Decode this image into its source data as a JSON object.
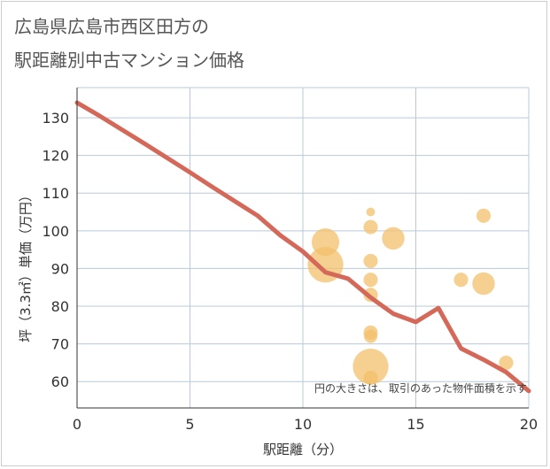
{
  "chart_data": {
    "type": "scatter",
    "title_line1": "広島県広島市西区田方の",
    "title_line2": "駅距離別中古マンション価格",
    "xlabel": "駅距離（分）",
    "ylabel": "坪（3.3㎡）単価（万円）",
    "note": "円の大きさは、取引のあった物件面積を示す",
    "xlim": [
      0,
      20
    ],
    "ylim": [
      53,
      138
    ],
    "xticks": [
      0,
      5,
      10,
      15,
      20
    ],
    "yticks": [
      60,
      70,
      80,
      90,
      100,
      110,
      120,
      130
    ],
    "colors": {
      "bubble": "#f3c06b",
      "line": "#d4695a",
      "grid": "#b9c9d9"
    },
    "bubbles": [
      {
        "x": 11,
        "y": 97,
        "size": 3
      },
      {
        "x": 11,
        "y": 91,
        "size": 5
      },
      {
        "x": 13,
        "y": 105,
        "size": 0.3
      },
      {
        "x": 13,
        "y": 101,
        "size": 0.8
      },
      {
        "x": 13,
        "y": 92,
        "size": 0.8
      },
      {
        "x": 13,
        "y": 87,
        "size": 0.8
      },
      {
        "x": 13,
        "y": 83,
        "size": 0.8
      },
      {
        "x": 13,
        "y": 73,
        "size": 0.8
      },
      {
        "x": 13,
        "y": 72,
        "size": 0.7
      },
      {
        "x": 13,
        "y": 64,
        "size": 5
      },
      {
        "x": 13,
        "y": 61,
        "size": 0.8
      },
      {
        "x": 14,
        "y": 98,
        "size": 2
      },
      {
        "x": 17,
        "y": 87,
        "size": 0.8
      },
      {
        "x": 18,
        "y": 104,
        "size": 0.8
      },
      {
        "x": 18,
        "y": 86,
        "size": 2
      },
      {
        "x": 19,
        "y": 65,
        "size": 0.8
      }
    ],
    "line": {
      "x": [
        0,
        1,
        2,
        3,
        4,
        5,
        6,
        7,
        8,
        9,
        10,
        11,
        12,
        13,
        14,
        15,
        16,
        17,
        18,
        19,
        20
      ],
      "y": [
        134,
        130.5,
        126.8,
        123.1,
        119.3,
        115.5,
        111.6,
        107.8,
        104,
        98.8,
        94.5,
        89,
        87.3,
        82.3,
        78,
        75.8,
        79.5,
        68.8,
        65.8,
        62.5,
        57.5
      ]
    }
  }
}
